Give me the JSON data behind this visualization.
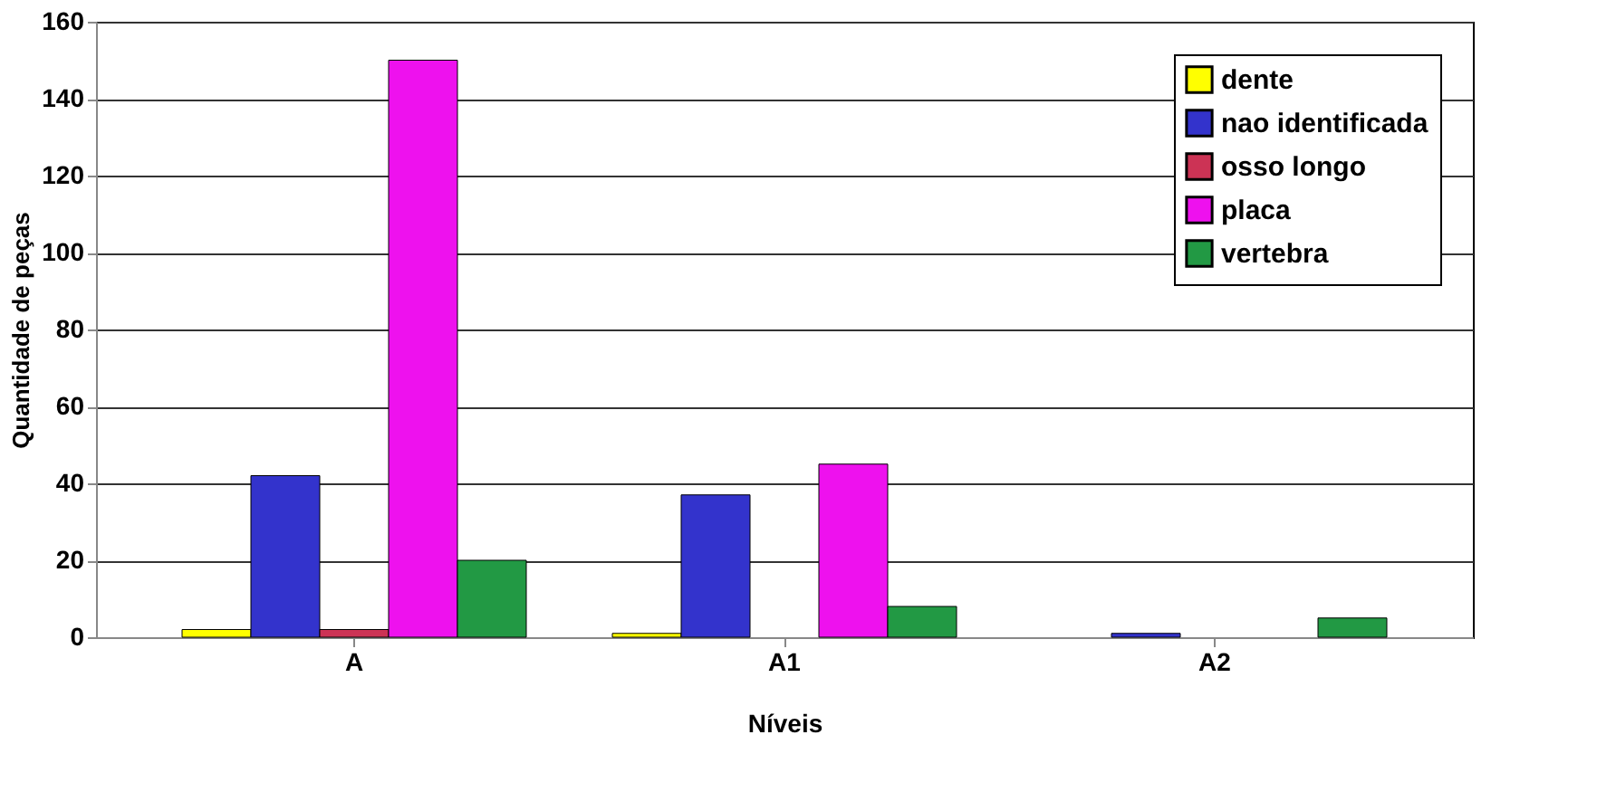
{
  "chart_data": {
    "type": "bar",
    "xlabel": "Níveis",
    "ylabel": "Quantidade de peças",
    "categories": [
      "A",
      "A1",
      "A2"
    ],
    "series": [
      {
        "name": "dente",
        "color": "#ffff00",
        "values": [
          2,
          1,
          null
        ]
      },
      {
        "name": "nao identificada",
        "color": "#3333cc",
        "values": [
          42,
          37,
          1
        ]
      },
      {
        "name": "osso longo",
        "color": "#cc3355",
        "values": [
          2,
          null,
          null
        ]
      },
      {
        "name": "placa",
        "color": "#ee11ee",
        "values": [
          150,
          45,
          null
        ]
      },
      {
        "name": "vertebra",
        "color": "#229944",
        "values": [
          20,
          8,
          5
        ]
      }
    ],
    "ylim": [
      0,
      160
    ],
    "yticks": [
      0,
      20,
      40,
      60,
      80,
      100,
      120,
      140,
      160
    ],
    "grid": "y",
    "legend": "top right"
  }
}
